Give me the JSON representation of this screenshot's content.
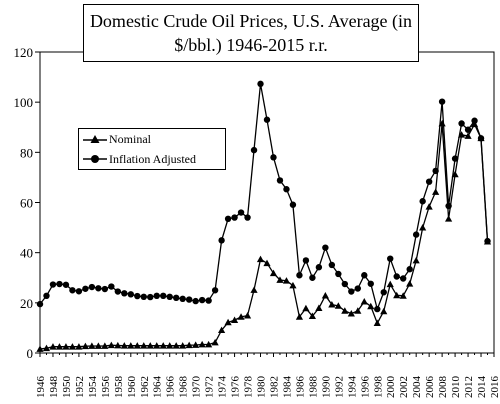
{
  "chart_data": {
    "type": "line",
    "title_line1": "Domestic Crude Oil  Prices, U.S. Average (in",
    "title_line2": "$/bbl.) 1946-2015 r.r.",
    "xlabel": "",
    "ylabel": "",
    "ylim": [
      0,
      120
    ],
    "yticks": [
      0,
      20,
      40,
      60,
      80,
      100,
      120
    ],
    "xlim": [
      1946,
      2016
    ],
    "xtick_labels": [
      "1946",
      "1948",
      "1950",
      "1952",
      "1954",
      "1956",
      "1958",
      "1960",
      "1962",
      "1964",
      "1966",
      "1968",
      "1970",
      "1972",
      "1974",
      "1976",
      "1978",
      "1980",
      "1982",
      "1984",
      "1986",
      "1988",
      "1990",
      "1992",
      "1994",
      "1996",
      "1998",
      "2000",
      "2002",
      "2004",
      "2006",
      "2008",
      "2010",
      "2012",
      "2014",
      "2016"
    ],
    "grid": false,
    "legend_position": "upper-left",
    "x": [
      1946,
      1947,
      1948,
      1949,
      1950,
      1951,
      1952,
      1953,
      1954,
      1955,
      1956,
      1957,
      1958,
      1959,
      1960,
      1961,
      1962,
      1963,
      1964,
      1965,
      1966,
      1967,
      1968,
      1969,
      1970,
      1971,
      1972,
      1973,
      1974,
      1975,
      1976,
      1977,
      1978,
      1979,
      1980,
      1981,
      1982,
      1983,
      1984,
      1985,
      1986,
      1987,
      1988,
      1989,
      1990,
      1991,
      1992,
      1993,
      1994,
      1995,
      1996,
      1997,
      1998,
      1999,
      2000,
      2001,
      2002,
      2003,
      2004,
      2005,
      2006,
      2007,
      2008,
      2009,
      2010,
      2011,
      2012,
      2013,
      2014,
      2015
    ],
    "series": [
      {
        "name": "Nominal",
        "marker": "triangle",
        "values": [
          1.6,
          1.9,
          2.5,
          2.5,
          2.5,
          2.5,
          2.5,
          2.7,
          2.8,
          2.8,
          2.8,
          3.1,
          3.0,
          2.9,
          2.9,
          2.9,
          2.9,
          2.9,
          2.9,
          2.9,
          2.9,
          2.9,
          2.9,
          3.1,
          3.2,
          3.4,
          3.4,
          4.2,
          9.1,
          12.2,
          13.1,
          14.4,
          14.9,
          25.1,
          37.4,
          35.8,
          31.8,
          29.1,
          28.8,
          26.9,
          14.4,
          17.8,
          14.7,
          17.9,
          22.9,
          19.3,
          18.8,
          16.8,
          15.7,
          16.8,
          20.5,
          18.6,
          11.9,
          16.6,
          27.4,
          23.0,
          22.8,
          27.6,
          36.9,
          50.0,
          58.3,
          64.2,
          91.5,
          53.5,
          71.2,
          87.0,
          86.5,
          91.2,
          85.6,
          44.4
        ]
      },
      {
        "name": "Inflation Adjusted",
        "marker": "circle",
        "values": [
          19.5,
          22.8,
          27.3,
          27.5,
          27.2,
          25.0,
          24.6,
          25.6,
          26.3,
          25.8,
          25.5,
          26.5,
          24.5,
          23.8,
          23.4,
          22.7,
          22.4,
          22.3,
          22.8,
          22.8,
          22.4,
          22.0,
          21.6,
          21.3,
          20.7,
          21.1,
          20.9,
          25.0,
          44.9,
          53.5,
          54.0,
          56.0,
          54.0,
          80.9,
          107.3,
          93.0,
          78.0,
          68.8,
          65.3,
          59.1,
          31.0,
          36.9,
          30.0,
          34.2,
          42.0,
          35.1,
          31.5,
          27.5,
          24.5,
          25.7,
          31.0,
          27.6,
          17.5,
          24.2,
          37.6,
          30.5,
          29.7,
          33.4,
          47.2,
          60.5,
          68.3,
          72.6,
          100.2,
          58.6,
          77.5,
          91.5,
          89.0,
          92.6,
          85.6,
          44.6
        ]
      }
    ]
  }
}
